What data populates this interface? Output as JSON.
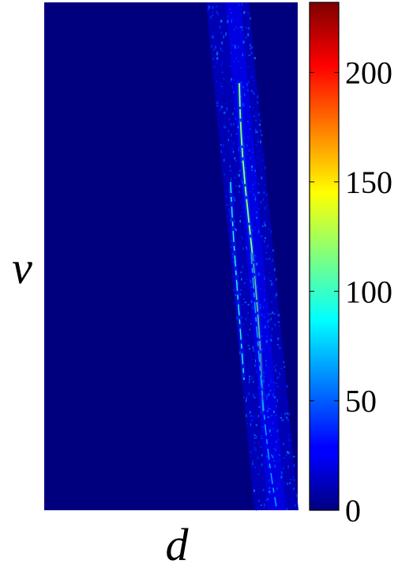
{
  "chart_data": {
    "type": "heatmap",
    "title": "",
    "xlabel": "d",
    "ylabel": "v",
    "colormap": "jet",
    "background_value": 0,
    "colorbar": {
      "range": [
        0,
        232
      ],
      "ticks": [
        0,
        50,
        100,
        150,
        200
      ],
      "tick_labels": [
        "0",
        "50",
        "100",
        "150",
        "200"
      ],
      "position": "right"
    },
    "grid": false,
    "description_bands": [
      {
        "name": "",
        "intensity": 12
      },
      {
        "name": "",
        "intensity": 22
      }
    ],
    "ridges": [
      {
        "intensity": 80,
        "peak": 120
      },
      {
        "intensity": 60,
        "peak": 95
      },
      {
        "intensity": 45,
        "peak": 70
      }
    ]
  }
}
